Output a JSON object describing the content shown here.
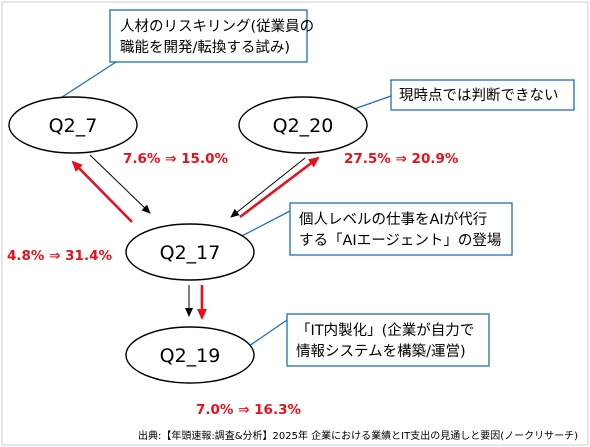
{
  "nodes": {
    "q2_7": "Q2_7",
    "q2_20": "Q2_20",
    "q2_17": "Q2_17",
    "q2_19": "Q2_19"
  },
  "callouts": {
    "q2_7": [
      "人材のリスキリング(従業員の",
      "職能を開発/転換する試み)"
    ],
    "q2_20": [
      "現時点では判断できない"
    ],
    "q2_17": [
      "個人レベルの仕事をAIが代行",
      "する「AIエージェント」の登場"
    ],
    "q2_19": [
      "「IT内製化」(企業が自力で",
      "情報システムを構築/運営)"
    ]
  },
  "changes": {
    "q2_7_to_q2_17": "7.6% ⇒ 15.0%",
    "q2_20_to_q2_17": "27.5% ⇒ 20.9%",
    "q2_17_to_q2_7": "4.8% ⇒ 31.4%",
    "q2_17_to_q2_19": "7.0% ⇒ 16.3%"
  },
  "source": "出典:【年頭速報:調査&分析】2025年 企業における業績とIT支出の見通しと要因(ノークリサーチ)",
  "colors": {
    "increase_arrow": "#e8101c",
    "decrease_arrow": "#000000",
    "callout_border": "#1f6fb2"
  }
}
